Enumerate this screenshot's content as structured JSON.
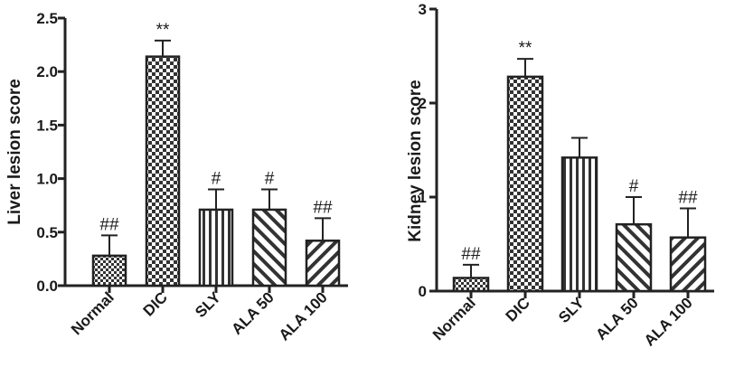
{
  "chart_data": [
    {
      "type": "bar",
      "title": "",
      "xlabel": "",
      "ylabel": "Liver lesion score",
      "ylim": [
        0,
        2.5
      ],
      "yticks": [
        0.0,
        0.5,
        1.0,
        1.5,
        2.0,
        2.5
      ],
      "ytick_labels": [
        "0.0",
        "0.5",
        "1.0",
        "1.5",
        "2.0",
        "2.5"
      ],
      "grid": false,
      "categories": [
        "Normal",
        "DIC",
        "SLY",
        "ALA 50",
        "ALA 100"
      ],
      "values": [
        0.28,
        2.14,
        0.71,
        0.71,
        0.42
      ],
      "errors": [
        0.19,
        0.15,
        0.19,
        0.19,
        0.21
      ],
      "annotations": [
        "##",
        "**",
        "#",
        "#",
        "##"
      ],
      "patterns": [
        "small-check",
        "big-check",
        "vertical",
        "diag-down",
        "diag-up"
      ]
    },
    {
      "type": "bar",
      "title": "",
      "xlabel": "",
      "ylabel": "Kidney lesion score",
      "ylim": [
        0,
        3
      ],
      "yticks": [
        0,
        1,
        2,
        3
      ],
      "ytick_labels": [
        "0",
        "1",
        "2",
        "3"
      ],
      "grid": false,
      "categories": [
        "Normal",
        "DIC",
        "SLY",
        "ALA 50",
        "ALA 100"
      ],
      "values": [
        0.14,
        2.28,
        1.42,
        0.71,
        0.57
      ],
      "errors": [
        0.14,
        0.19,
        0.21,
        0.29,
        0.31
      ],
      "annotations": [
        "##",
        "**",
        "",
        "#",
        "##"
      ],
      "patterns": [
        "small-check",
        "big-check",
        "vertical",
        "diag-down",
        "diag-up"
      ]
    }
  ]
}
